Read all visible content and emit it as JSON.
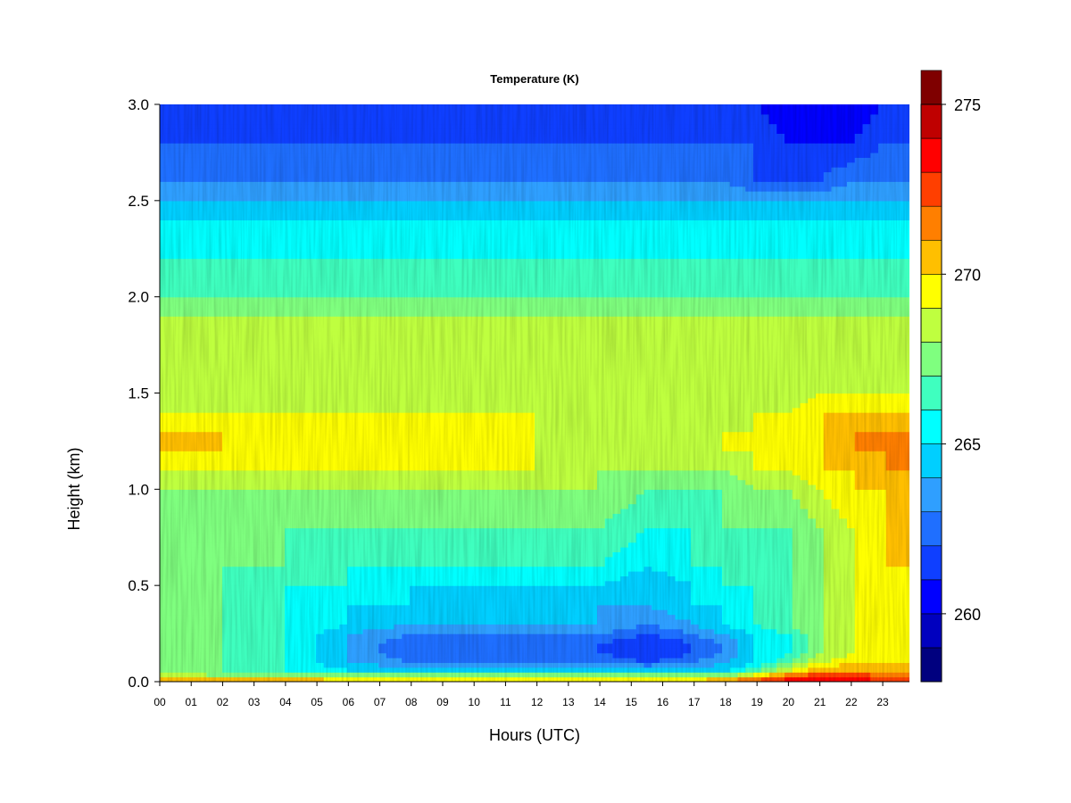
{
  "chart_data": {
    "type": "heatmap",
    "title": "Temperature (K)",
    "xlabel": "Hours (UTC)",
    "ylabel": "Height (km)",
    "x_tick_labels": [
      "00",
      "01",
      "02",
      "03",
      "04",
      "05",
      "06",
      "07",
      "08",
      "09",
      "10",
      "11",
      "12",
      "13",
      "14",
      "15",
      "16",
      "17",
      "18",
      "19",
      "20",
      "21",
      "22",
      "23"
    ],
    "xlim": [
      0,
      23.85
    ],
    "y_ticks": [
      0.0,
      0.5,
      1.0,
      1.5,
      2.0,
      2.5,
      3.0
    ],
    "y_tick_labels": [
      "0.0",
      "0.5",
      "1.0",
      "1.5",
      "2.0",
      "2.5",
      "3.0"
    ],
    "ylim": [
      0,
      3
    ],
    "colorbar": {
      "range": [
        258,
        275
      ],
      "step": 1,
      "ticks": [
        260,
        265,
        270,
        275
      ],
      "tick_labels": [
        "260",
        "265",
        "270",
        "275"
      ],
      "colors": [
        "#00007F",
        "#0000BF",
        "#0000FF",
        "#0F3FFF",
        "#1F6FFF",
        "#2F9FFF",
        "#00CFFF",
        "#00FFFF",
        "#3FFFBF",
        "#7FFF7F",
        "#BFFF3F",
        "#FFFF00",
        "#FFBF00",
        "#FF7F00",
        "#FF3F00",
        "#FF0000",
        "#BF0000",
        "#7F0000"
      ]
    },
    "grid": false,
    "heights_km": [
      0.0,
      0.03,
      0.06,
      0.1,
      0.15,
      0.2,
      0.25,
      0.3,
      0.4,
      0.5,
      0.6,
      0.8,
      1.0,
      1.1,
      1.2,
      1.3,
      1.4,
      1.5,
      1.7,
      1.9,
      2.0,
      2.2,
      2.4,
      2.5,
      2.6,
      2.8,
      3.0
    ],
    "hours": [
      0,
      2,
      4,
      6,
      8,
      10,
      12,
      14,
      15.5,
      17,
      18,
      19,
      20,
      21,
      22,
      23,
      23.85
    ],
    "temperature_K": [
      [
        272,
        272,
        272,
        271,
        271,
        270,
        270,
        270,
        270,
        271,
        272,
        273,
        274,
        274,
        274,
        273,
        273
      ],
      [
        269,
        268,
        268,
        268,
        268,
        268,
        268,
        268,
        268,
        268,
        268,
        270,
        272,
        273,
        273,
        272,
        272
      ],
      [
        268,
        267,
        266,
        265,
        265,
        265,
        265,
        265,
        265,
        265,
        265,
        267,
        269,
        271,
        271,
        271,
        271
      ],
      [
        268,
        267,
        266,
        264,
        263,
        263,
        263,
        263,
        262,
        263,
        264,
        265,
        267,
        269,
        270,
        270,
        270
      ],
      [
        268,
        267,
        266,
        264,
        262,
        262,
        262,
        262,
        261,
        262,
        263,
        265,
        266,
        268,
        269,
        269,
        269
      ],
      [
        268,
        267,
        266,
        264,
        262,
        262,
        262,
        262,
        261,
        262,
        263,
        265,
        266,
        268,
        269,
        269,
        269
      ],
      [
        268,
        267,
        266,
        264,
        263,
        263,
        263,
        263,
        262,
        263,
        264,
        265,
        266,
        268,
        269,
        269,
        269
      ],
      [
        268,
        267,
        266,
        265,
        264,
        264,
        264,
        264,
        263,
        264,
        265,
        266,
        267,
        268,
        269,
        269,
        269
      ],
      [
        268,
        267,
        266,
        265,
        265,
        264,
        264,
        264,
        264,
        265,
        265,
        266,
        267,
        268,
        269,
        269,
        269
      ],
      [
        268,
        267,
        266,
        266,
        265,
        265,
        265,
        265,
        264,
        265,
        266,
        266,
        267,
        268,
        269,
        269,
        269
      ],
      [
        268,
        267,
        267,
        266,
        266,
        266,
        266,
        266,
        265,
        266,
        266,
        266,
        267,
        268,
        269,
        270,
        270
      ],
      [
        267,
        267,
        267,
        267,
        267,
        267,
        267,
        267,
        266,
        266,
        267,
        267,
        267,
        268,
        269,
        270,
        270
      ],
      [
        268,
        268,
        268,
        268,
        268,
        268,
        268,
        268,
        267,
        267,
        267,
        268,
        268,
        269,
        270,
        270,
        270
      ],
      [
        269,
        269,
        269,
        269,
        269,
        269,
        269,
        268,
        268,
        268,
        268,
        269,
        269,
        270,
        270,
        271,
        271
      ],
      [
        270,
        270,
        269,
        269,
        269,
        270,
        269,
        268,
        268,
        268,
        269,
        269,
        269,
        270,
        271,
        271,
        271
      ],
      [
        270,
        270,
        269,
        269,
        270,
        270,
        269,
        268,
        268,
        268,
        269,
        269,
        269,
        270,
        271,
        271,
        271
      ],
      [
        269,
        269,
        269,
        269,
        269,
        269,
        269,
        268,
        268,
        268,
        268,
        269,
        269,
        270,
        270,
        270,
        270
      ],
      [
        268,
        268,
        268,
        268,
        268,
        268,
        268,
        268,
        268,
        268,
        268,
        268,
        268,
        269,
        269,
        269,
        269
      ],
      [
        268,
        268,
        268,
        268,
        268,
        268,
        268,
        268,
        268,
        268,
        268,
        268,
        268,
        268,
        268,
        268,
        268
      ],
      [
        268,
        268,
        268,
        268,
        268,
        268,
        268,
        268,
        268,
        268,
        268,
        268,
        268,
        268,
        268,
        268,
        268
      ],
      [
        267,
        267,
        267,
        267,
        267,
        267,
        267,
        267,
        267,
        267,
        267,
        267,
        267,
        267,
        267,
        267,
        267
      ],
      [
        266,
        266,
        266,
        266,
        266,
        266,
        266,
        266,
        266,
        266,
        266,
        266,
        266,
        266,
        266,
        266,
        266
      ],
      [
        265,
        265,
        265,
        265,
        265,
        265,
        265,
        265,
        265,
        265,
        265,
        265,
        265,
        265,
        265,
        265,
        265
      ],
      [
        264,
        264,
        264,
        264,
        264,
        264,
        264,
        264,
        264,
        264,
        264,
        264,
        264,
        264,
        264,
        264,
        264
      ],
      [
        263,
        263,
        263,
        263,
        263,
        263,
        263,
        263,
        263,
        263,
        263,
        262,
        262,
        262,
        263,
        263,
        263
      ],
      [
        262,
        262,
        262,
        262,
        262,
        262,
        262,
        262,
        262,
        262,
        262,
        262,
        261,
        261,
        261,
        262,
        262
      ],
      [
        261,
        261,
        261,
        261,
        261,
        261,
        261,
        261,
        261,
        261,
        261,
        261,
        260,
        260,
        260,
        261,
        261
      ]
    ]
  }
}
